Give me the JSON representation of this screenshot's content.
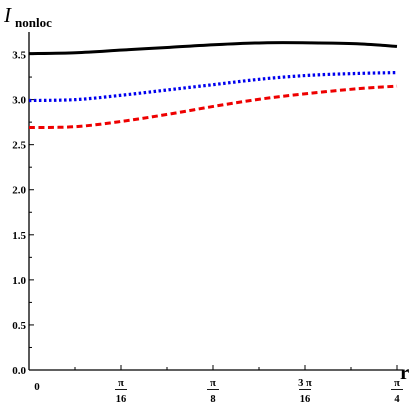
{
  "chart_data": {
    "type": "line",
    "ylabel_main": "I",
    "ylabel_sub": "nonloc",
    "xlabel": "r",
    "xlim": [
      0,
      0.7854
    ],
    "ylim": [
      0,
      3.75
    ],
    "grid": false,
    "x_ticks": [
      {
        "value": 0,
        "label": "0"
      },
      {
        "value": 0.19635,
        "num": "π",
        "den": "16"
      },
      {
        "value": 0.3927,
        "num": "π",
        "den": "8"
      },
      {
        "value": 0.58905,
        "num": "3 π",
        "den": "16"
      },
      {
        "value": 0.7854,
        "num": "π",
        "den": "4"
      }
    ],
    "y_ticks": [
      "0.0",
      "0.5",
      "1.0",
      "1.5",
      "2.0",
      "2.5",
      "3.0",
      "3.5"
    ],
    "y_tick_values": [
      0,
      0.5,
      1.0,
      1.5,
      2.0,
      2.5,
      3.0,
      3.5
    ],
    "series": [
      {
        "color": "#000000",
        "style": "solid",
        "x": [
          0,
          0.1,
          0.2,
          0.3,
          0.4,
          0.5,
          0.6,
          0.7,
          0.7854
        ],
        "y": [
          3.51,
          3.52,
          3.55,
          3.58,
          3.61,
          3.63,
          3.63,
          3.62,
          3.59
        ]
      },
      {
        "color": "#0000ee",
        "style": "dotted",
        "x": [
          0,
          0.1,
          0.2,
          0.3,
          0.4,
          0.5,
          0.6,
          0.7,
          0.7854
        ],
        "y": [
          2.99,
          3.0,
          3.05,
          3.11,
          3.17,
          3.23,
          3.27,
          3.29,
          3.3
        ]
      },
      {
        "color": "#ee0000",
        "style": "dashed",
        "x": [
          0,
          0.1,
          0.2,
          0.3,
          0.4,
          0.5,
          0.6,
          0.7,
          0.7854
        ],
        "y": [
          2.69,
          2.7,
          2.76,
          2.84,
          2.93,
          3.01,
          3.07,
          3.12,
          3.15
        ]
      }
    ]
  }
}
